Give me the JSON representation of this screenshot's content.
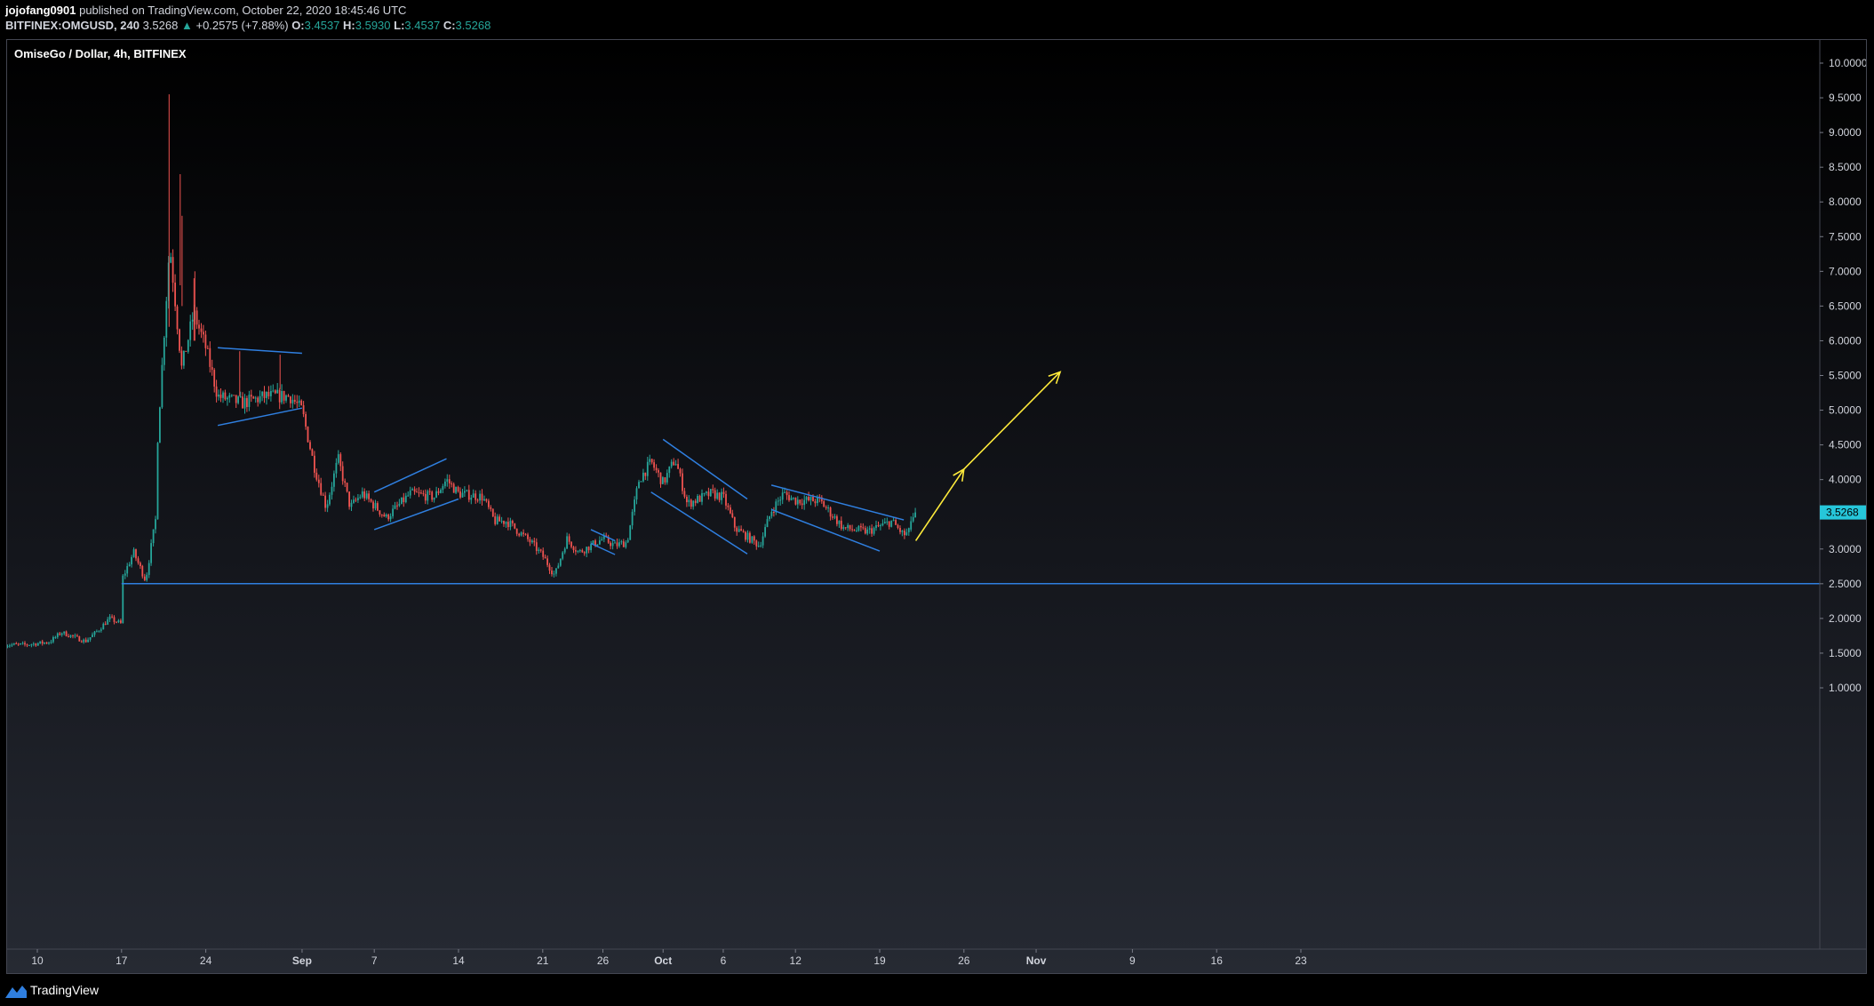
{
  "header": {
    "author": "jojofang0901",
    "published_text": "published on TradingView.com, October 22, 2020 18:45:46 UTC",
    "ticker": "BITFINEX:OMGUSD, 240",
    "last": "3.5268",
    "change_icon": "triangle-up-icon",
    "change_arrow": "▲",
    "change": "+0.2575 (+7.88%)",
    "open_label": "O:",
    "open": "3.4537",
    "high_label": "H:",
    "high": "3.5930",
    "low_label": "L:",
    "low": "3.4537",
    "close_label": "C:",
    "close": "3.5268"
  },
  "chart_title": "OmiseGo / Dollar, 4h, BITFINEX",
  "footer": {
    "brand": "TradingView",
    "logo_icon": "tradingview-logo-icon"
  },
  "colors": {
    "up": "#26a69a",
    "down": "#ef5350",
    "trendline": "#2f7fe0",
    "projection_arrow": "#ffeb3b",
    "price_tag": "#26c6da"
  },
  "chart_data": {
    "type": "candlestick",
    "title": "OmiseGo / Dollar, 4h, BITFINEX",
    "ylim": [
      0.7,
      10.5
    ],
    "y_ticks": [
      "10.0000",
      "9.5000",
      "9.0000",
      "8.5000",
      "8.0000",
      "7.5000",
      "7.0000",
      "6.5000",
      "6.0000",
      "5.5000",
      "5.0000",
      "4.5000",
      "4.0000",
      "3.5000",
      "3.0000",
      "2.5000",
      "2.0000",
      "1.5000",
      "1.0000"
    ],
    "x_ticks": [
      "10",
      "17",
      "24",
      "Sep",
      "7",
      "14",
      "21",
      "26",
      "Oct",
      "6",
      "12",
      "19",
      "26",
      "Nov",
      "9",
      "16",
      "23"
    ],
    "x_tick_dates": [
      "2020-08-10",
      "2020-08-17",
      "2020-08-24",
      "2020-09-01",
      "2020-09-07",
      "2020-09-14",
      "2020-09-21",
      "2020-09-26",
      "2020-10-01",
      "2020-10-06",
      "2020-10-12",
      "2020-10-19",
      "2020-10-26",
      "2020-11-01",
      "2020-11-09",
      "2020-11-16",
      "2020-11-23"
    ],
    "current_price": "3.5268",
    "price_path": [
      [
        "2020-08-09",
        1.62
      ],
      [
        "2020-08-11",
        1.66
      ],
      [
        "2020-08-12",
        1.8
      ],
      [
        "2020-08-14",
        1.67
      ],
      [
        "2020-08-15",
        1.82
      ],
      [
        "2020-08-16",
        2.0
      ],
      [
        "2020-08-17",
        1.92
      ],
      [
        "2020-08-17",
        2.55
      ],
      [
        "2020-08-18",
        2.95
      ],
      [
        "2020-08-19",
        2.55
      ],
      [
        "2020-08-20",
        3.6
      ],
      [
        "2020-08-20",
        4.6
      ],
      [
        "2020-08-21",
        7.4
      ],
      [
        "2020-08-22",
        5.6
      ],
      [
        "2020-08-23",
        6.4
      ],
      [
        "2020-08-24",
        5.9
      ],
      [
        "2020-08-25",
        5.2
      ],
      [
        "2020-08-27",
        5.1
      ],
      [
        "2020-08-29",
        5.2
      ],
      [
        "2020-08-31",
        5.2
      ],
      [
        "2020-09-01",
        5.0
      ],
      [
        "2020-09-02",
        4.2
      ],
      [
        "2020-09-03",
        3.6
      ],
      [
        "2020-09-04",
        4.3
      ],
      [
        "2020-09-05",
        3.6
      ],
      [
        "2020-09-06",
        3.8
      ],
      [
        "2020-09-08",
        3.45
      ],
      [
        "2020-09-10",
        3.8
      ],
      [
        "2020-09-12",
        3.75
      ],
      [
        "2020-09-13",
        4.0
      ],
      [
        "2020-09-14",
        3.8
      ],
      [
        "2020-09-16",
        3.75
      ],
      [
        "2020-09-17",
        3.4
      ],
      [
        "2020-09-18",
        3.4
      ],
      [
        "2020-09-20",
        3.1
      ],
      [
        "2020-09-21",
        2.9
      ],
      [
        "2020-09-22",
        2.62
      ],
      [
        "2020-09-23",
        3.15
      ],
      [
        "2020-09-24",
        2.95
      ],
      [
        "2020-09-26",
        3.15
      ],
      [
        "2020-09-27",
        3.05
      ],
      [
        "2020-09-28",
        3.1
      ],
      [
        "2020-09-29",
        4.0
      ],
      [
        "2020-09-30",
        4.25
      ],
      [
        "2020-10-01",
        3.95
      ],
      [
        "2020-10-02",
        4.3
      ],
      [
        "2020-10-03",
        3.65
      ],
      [
        "2020-10-05",
        3.8
      ],
      [
        "2020-10-06",
        3.75
      ],
      [
        "2020-10-07",
        3.3
      ],
      [
        "2020-10-09",
        3.05
      ],
      [
        "2020-10-10",
        3.55
      ],
      [
        "2020-10-11",
        3.8
      ],
      [
        "2020-10-12",
        3.7
      ],
      [
        "2020-10-14",
        3.7
      ],
      [
        "2020-10-16",
        3.3
      ],
      [
        "2020-10-18",
        3.25
      ],
      [
        "2020-10-20",
        3.4
      ],
      [
        "2020-10-21",
        3.2
      ],
      [
        "2020-10-22",
        3.3
      ]
    ],
    "spikes": [
      [
        "2020-08-21",
        6.2,
        9.55
      ],
      [
        "2020-08-22",
        6.8,
        8.4
      ],
      [
        "2020-08-22",
        6.5,
        7.8
      ],
      [
        "2020-08-23",
        6.0,
        6.9
      ],
      [
        "2020-08-23",
        6.0,
        7.0
      ],
      [
        "2020-08-27",
        5.2,
        5.85
      ],
      [
        "2020-08-30",
        5.3,
        5.8
      ]
    ],
    "drawings": {
      "support_line": {
        "price": 2.5,
        "start": "2020-08-17"
      },
      "trendlines": [
        {
          "from": [
            "2020-08-25",
            5.9
          ],
          "to": [
            "2020-09-01",
            5.82
          ]
        },
        {
          "from": [
            "2020-08-25",
            4.78
          ],
          "to": [
            "2020-09-01",
            5.03
          ]
        },
        {
          "from": [
            "2020-09-07",
            3.82
          ],
          "to": [
            "2020-09-13",
            4.3
          ]
        },
        {
          "from": [
            "2020-09-07",
            3.28
          ],
          "to": [
            "2020-09-14",
            3.72
          ]
        },
        {
          "from": [
            "2020-09-25",
            3.28
          ],
          "to": [
            "2020-09-27",
            3.12
          ]
        },
        {
          "from": [
            "2020-09-25",
            3.08
          ],
          "to": [
            "2020-09-27",
            2.92
          ]
        },
        {
          "from": [
            "2020-10-01",
            4.58
          ],
          "to": [
            "2020-10-08",
            3.72
          ]
        },
        {
          "from": [
            "2020-09-30",
            3.82
          ],
          "to": [
            "2020-10-08",
            2.93
          ]
        },
        {
          "from": [
            "2020-10-10",
            3.92
          ],
          "to": [
            "2020-10-21",
            3.42
          ]
        },
        {
          "from": [
            "2020-10-10",
            3.57
          ],
          "to": [
            "2020-10-19",
            2.97
          ]
        }
      ],
      "projection_arrows": [
        {
          "from": [
            "2020-10-22",
            3.12
          ],
          "to": [
            "2020-10-26",
            4.15
          ]
        },
        {
          "from": [
            "2020-10-26",
            4.15
          ],
          "to": [
            "2020-11-03",
            5.55
          ]
        }
      ]
    }
  }
}
